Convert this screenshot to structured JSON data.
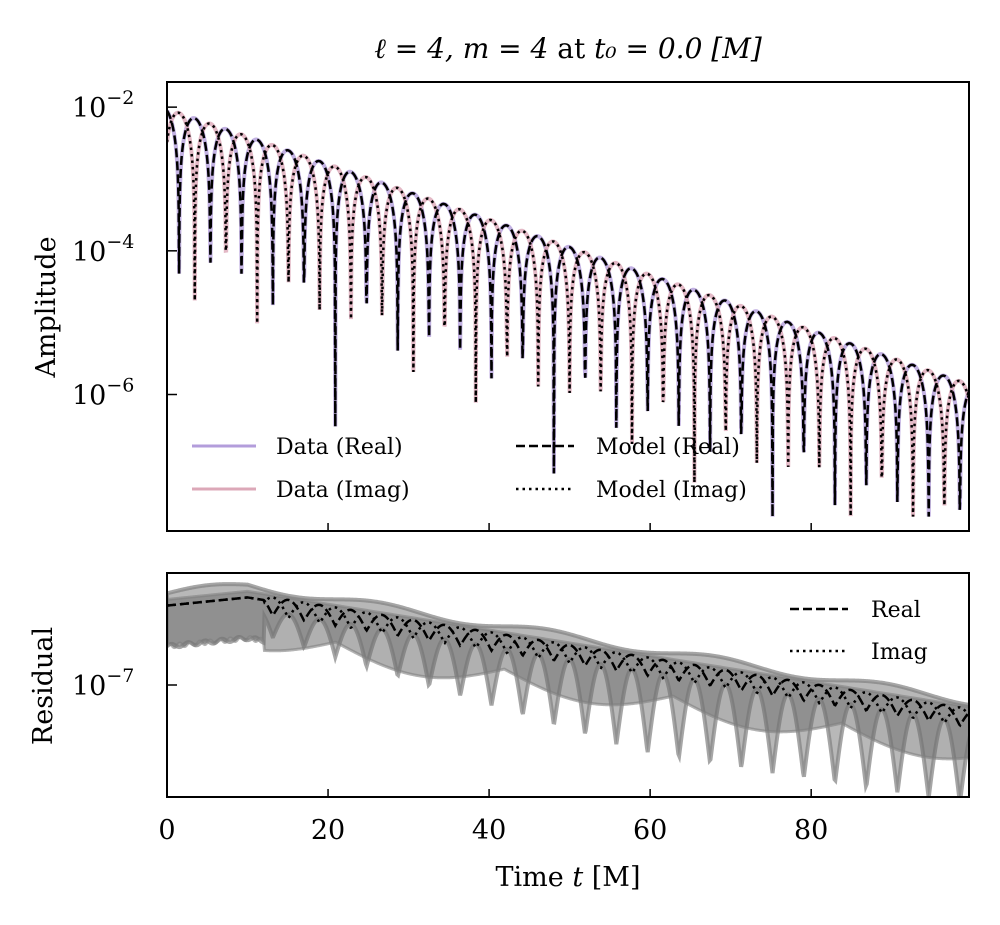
{
  "chart_data": [
    {
      "type": "line",
      "panel": "top",
      "title": "ℓ = 4, m = 4 at t₀ = 0.0 [M]",
      "title_parts": {
        "ell": "ℓ = 4, ",
        "m": "m = 4",
        "at": " at ",
        "t0": "t₀ = 0.0 [M]"
      },
      "xlabel": "",
      "ylabel": "Amplitude",
      "yscale": "log",
      "xlim": [
        0,
        99.6
      ],
      "ylim_log10": [
        -7.9,
        -1.65
      ],
      "yticks": [
        {
          "base": "10",
          "exp": "−2",
          "value": -2
        },
        {
          "base": "10",
          "exp": "−4",
          "value": -4
        },
        {
          "base": "10",
          "exp": "−6",
          "value": -6
        }
      ],
      "xticks": [
        0,
        20,
        40,
        60,
        80
      ],
      "legend_placement": "lower-left",
      "legend": [
        {
          "label": "Data (Real)",
          "style": "solid",
          "color": "#b39ddb"
        },
        {
          "label": "Data (Imag)",
          "style": "solid",
          "color": "#dca8b8"
        },
        {
          "label": "Model (Real)",
          "style": "dashed",
          "color": "#000000"
        },
        {
          "label": "Model (Imag)",
          "style": "dotted",
          "color": "#000000"
        }
      ],
      "model": {
        "description": "abs of damped sinusoid, real and imaginary parts",
        "amplitude_at_t0": 0.0095,
        "log10_decay_per_M": -0.0385,
        "omega": 0.81,
        "samples_t_step": 0.05
      },
      "series": [
        {
          "name": "Data (Real)",
          "component": "real"
        },
        {
          "name": "Data (Imag)",
          "component": "imag"
        },
        {
          "name": "Model (Real)",
          "component": "real"
        },
        {
          "name": "Model (Imag)",
          "component": "imag"
        }
      ]
    },
    {
      "type": "line",
      "panel": "bottom",
      "xlabel": "Time t [M]",
      "xlabel_parts": {
        "text": "Time ",
        "var": "t",
        "unit": " [M]"
      },
      "ylabel": "Residual",
      "yscale": "log",
      "xlim": [
        0,
        99.6
      ],
      "ylim_log10": [
        -7.55,
        -6.45
      ],
      "yticks": [
        {
          "base": "10",
          "exp": "−7",
          "value": -7
        }
      ],
      "xticks": [
        0,
        20,
        40,
        60,
        80
      ],
      "legend_placement": "upper-right",
      "legend": [
        {
          "label": "Real",
          "style": "dashed",
          "color": "#000000"
        },
        {
          "label": "Imag",
          "style": "dotted",
          "color": "#000000"
        }
      ],
      "residual_model": {
        "start_log10": -6.58,
        "end_log10": -7.15,
        "band_color": "#808080",
        "band_fill": "#b0b0b0",
        "dark_fill": "#707070"
      },
      "series": [
        {
          "name": "Real",
          "style": "dashed"
        },
        {
          "name": "Imag",
          "style": "dotted"
        }
      ]
    }
  ]
}
